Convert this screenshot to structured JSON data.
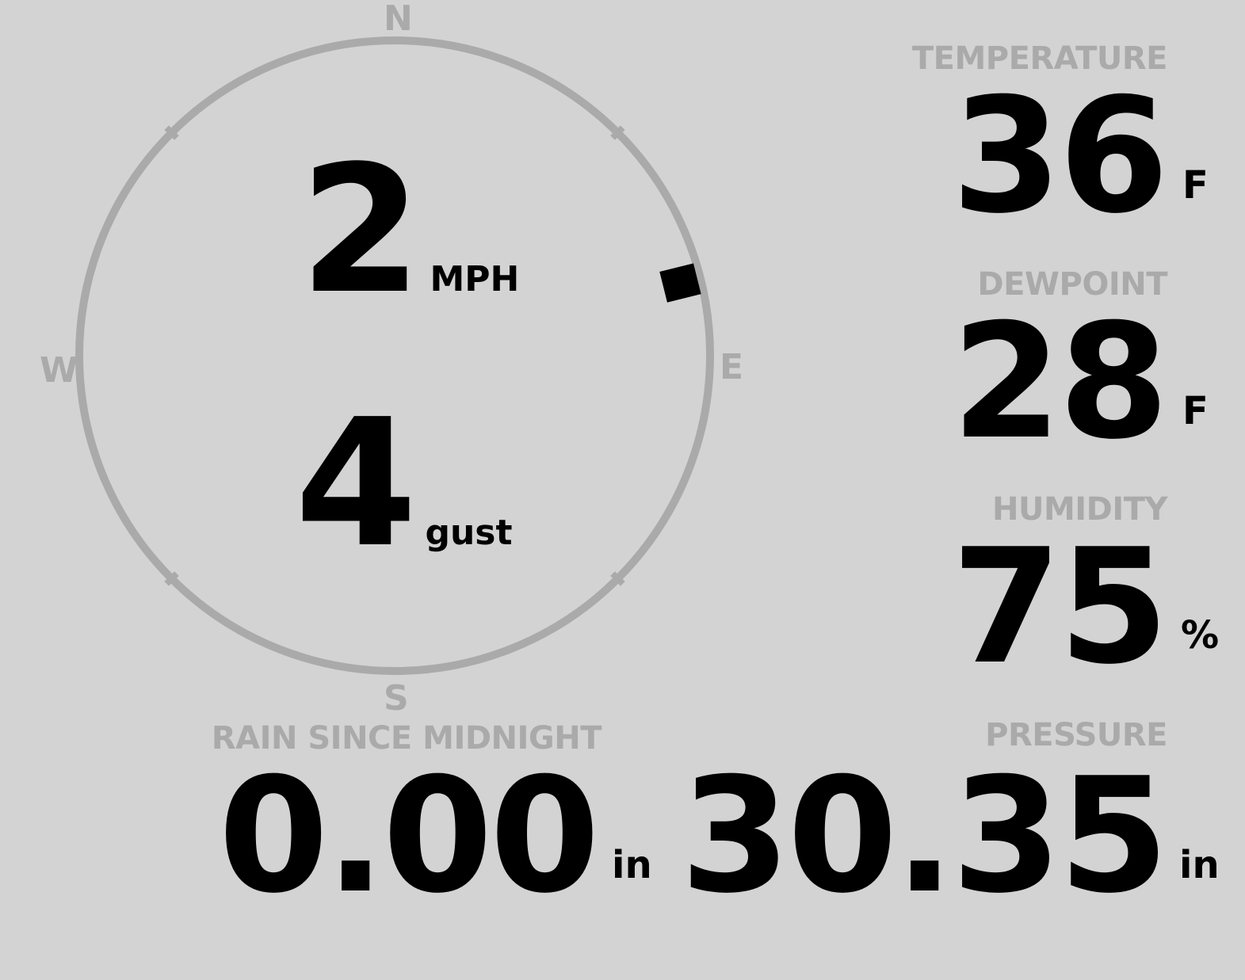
{
  "wind": {
    "speed": "2",
    "speed_unit": "MPH",
    "gust": "4",
    "gust_label": "gust",
    "direction_degrees": 76,
    "compass": {
      "n": "N",
      "e": "E",
      "s": "S",
      "w": "W"
    }
  },
  "temperature": {
    "label": "TEMPERATURE",
    "value": "36",
    "unit": "F"
  },
  "dewpoint": {
    "label": "DEWPOINT",
    "value": "28",
    "unit": "F"
  },
  "humidity": {
    "label": "HUMIDITY",
    "value": "75",
    "unit": "%"
  },
  "rain": {
    "label": "RAIN SINCE MIDNIGHT",
    "value": "0.00",
    "unit": "in"
  },
  "pressure": {
    "label": "PRESSURE",
    "value": "30.35",
    "unit": "in"
  },
  "colors": {
    "background": "#d3d3d3",
    "label": "#aaaaaa",
    "value": "#000000"
  }
}
